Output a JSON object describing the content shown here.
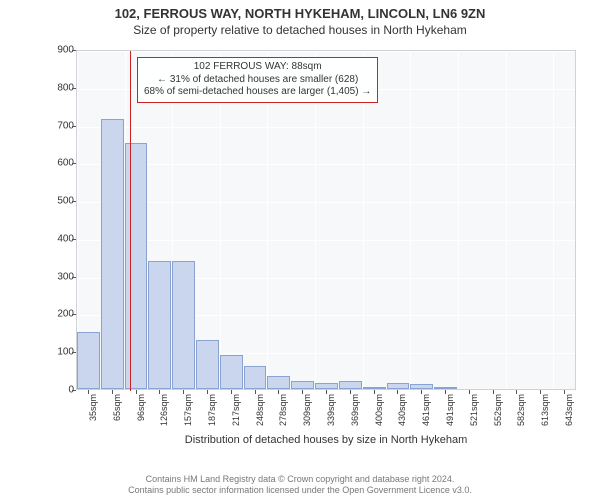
{
  "title": {
    "main": "102, FERROUS WAY, NORTH HYKEHAM, LINCOLN, LN6 9ZN",
    "sub": "Size of property relative to detached houses in North Hykeham"
  },
  "chart": {
    "type": "histogram",
    "background_color": "#f6f8fa",
    "border_color": "#cfd3d7",
    "grid_color": "#ffffff",
    "bar_fill": "#c9d6ee",
    "bar_stroke": "#8aa3d0",
    "ylabel": "Number of detached properties",
    "xlabel": "Distribution of detached houses by size in North Hykeham",
    "ylim": [
      0,
      900
    ],
    "ytick_step": 100,
    "yticks": [
      0,
      100,
      200,
      300,
      400,
      500,
      600,
      700,
      800,
      900
    ],
    "xticks": [
      "35sqm",
      "65sqm",
      "96sqm",
      "126sqm",
      "157sqm",
      "187sqm",
      "217sqm",
      "248sqm",
      "278sqm",
      "309sqm",
      "339sqm",
      "369sqm",
      "400sqm",
      "430sqm",
      "461sqm",
      "491sqm",
      "521sqm",
      "552sqm",
      "582sqm",
      "613sqm",
      "643sqm"
    ],
    "values": [
      150,
      715,
      650,
      340,
      340,
      130,
      90,
      60,
      35,
      20,
      15,
      20,
      5,
      15,
      12,
      5,
      0,
      0,
      0,
      0,
      0
    ],
    "label_fontsize": 11,
    "tick_fontsize": 10
  },
  "marker": {
    "value_sqm": 88,
    "color": "#cc2222",
    "box": {
      "line1": "102 FERROUS WAY: 88sqm",
      "line2": "← 31% of detached houses are smaller (628)",
      "line3": "68% of semi-detached houses are larger (1,405) →"
    }
  },
  "footer": {
    "line1": "Contains HM Land Registry data © Crown copyright and database right 2024.",
    "line2": "Contains public sector information licensed under the Open Government Licence v3.0."
  }
}
